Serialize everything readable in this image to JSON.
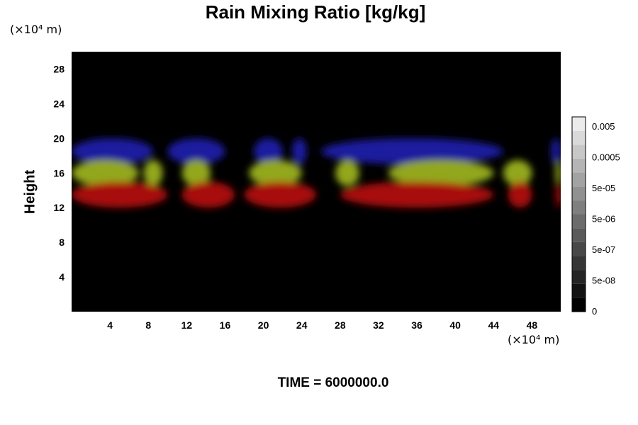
{
  "chart_data": {
    "type": "heatmap",
    "title": "Rain Mixing Ratio [kg/kg]",
    "xlabel": "",
    "ylabel": "Height",
    "x_unit": "(×10⁴ m)",
    "y_unit": "(×10⁴ m)",
    "xlim": [
      0,
      51
    ],
    "ylim": [
      0,
      30
    ],
    "x_ticks": [
      4,
      8,
      12,
      16,
      20,
      24,
      28,
      32,
      36,
      40,
      44,
      48
    ],
    "y_ticks": [
      4,
      8,
      12,
      16,
      20,
      24,
      28
    ],
    "background_color": "#000000",
    "colorbar": {
      "ticks": [
        "0",
        "5e-08",
        "5e-07",
        "5e-06",
        "5e-05",
        "0.0005",
        "0.005"
      ],
      "levels": 14
    },
    "layers": [
      {
        "color": "#1a1aa8",
        "ymin": 17,
        "ymax": 20,
        "blobs": [
          [
            0,
            8.5
          ],
          [
            10,
            16
          ],
          [
            19,
            22
          ],
          [
            23,
            24.5
          ],
          [
            26,
            45
          ],
          [
            50,
            51
          ]
        ]
      },
      {
        "color": "#9ab01a",
        "ymin": 14.5,
        "ymax": 17.5,
        "blobs": [
          [
            0,
            7
          ],
          [
            7.5,
            9.5
          ],
          [
            11.5,
            14.5
          ],
          [
            18.5,
            24
          ],
          [
            27.5,
            30
          ],
          [
            33,
            44
          ],
          [
            45,
            48
          ],
          [
            50.5,
            51
          ]
        ]
      },
      {
        "color": "#b01010",
        "ymin": 12,
        "ymax": 15,
        "blobs": [
          [
            0,
            10
          ],
          [
            11.5,
            17
          ],
          [
            18,
            25.5
          ],
          [
            28,
            44
          ],
          [
            45.5,
            48
          ],
          [
            50.5,
            51
          ]
        ]
      }
    ]
  },
  "footer": {
    "time_label": "TIME = 6000000.0"
  }
}
